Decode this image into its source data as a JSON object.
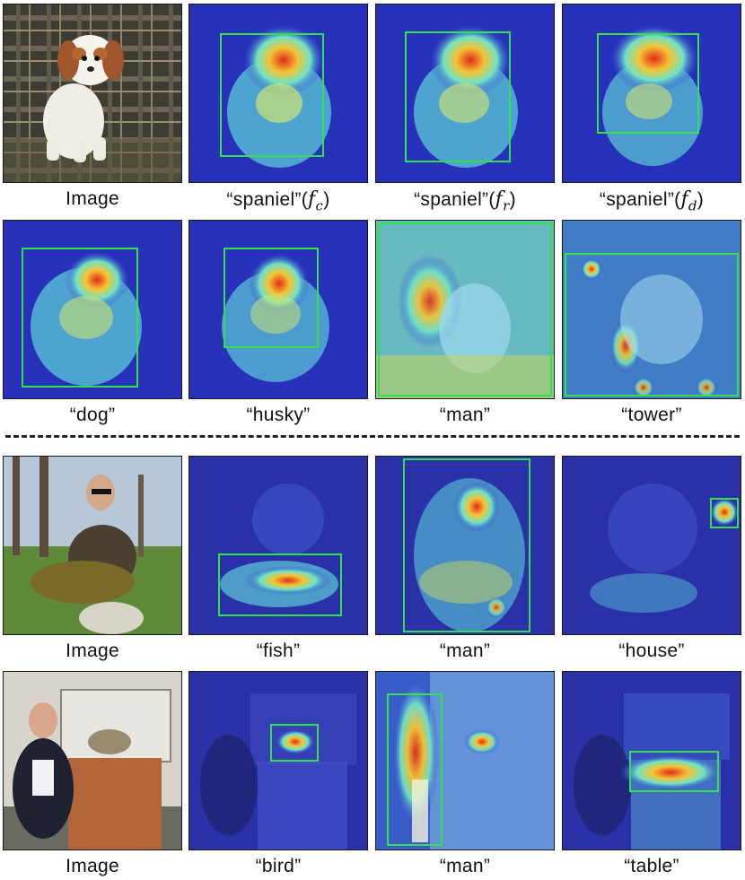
{
  "figure": {
    "rows": [
      {
        "scene": "dog",
        "cells": [
          {
            "caption": "Image",
            "caption_math": "",
            "caption_sub": "",
            "kind": "image"
          },
          {
            "caption": "“spaniel”(",
            "caption_math": "f",
            "caption_sub": "c",
            "caption_close": ")",
            "kind": "heat"
          },
          {
            "caption": "“spaniel”(",
            "caption_math": "f",
            "caption_sub": "r",
            "caption_close": ")",
            "kind": "heat"
          },
          {
            "caption": "“spaniel”(",
            "caption_math": "f",
            "caption_sub": "d",
            "caption_close": ")",
            "kind": "heat"
          }
        ]
      },
      {
        "scene": "dog",
        "cells": [
          {
            "caption": "“dog”",
            "kind": "heat"
          },
          {
            "caption": "“husky”",
            "kind": "heat"
          },
          {
            "caption": "“man”",
            "kind": "heat"
          },
          {
            "caption": "“tower”",
            "kind": "heat"
          }
        ]
      },
      {
        "scene": "fish",
        "cells": [
          {
            "caption": "Image",
            "kind": "image"
          },
          {
            "caption": "“fish”",
            "kind": "heat"
          },
          {
            "caption": "“man”",
            "kind": "heat"
          },
          {
            "caption": "“house”",
            "kind": "heat"
          }
        ]
      },
      {
        "scene": "bird",
        "cells": [
          {
            "caption": "Image",
            "kind": "image"
          },
          {
            "caption": "“bird”",
            "kind": "heat"
          },
          {
            "caption": "“man”",
            "kind": "heat"
          },
          {
            "caption": "“table”",
            "kind": "heat"
          }
        ]
      }
    ],
    "colors": {
      "box": "#31e24a",
      "heat_low": "#1b22c8",
      "heat_mid": "#5fe0c8",
      "heat_high": "#e42a1a"
    }
  }
}
